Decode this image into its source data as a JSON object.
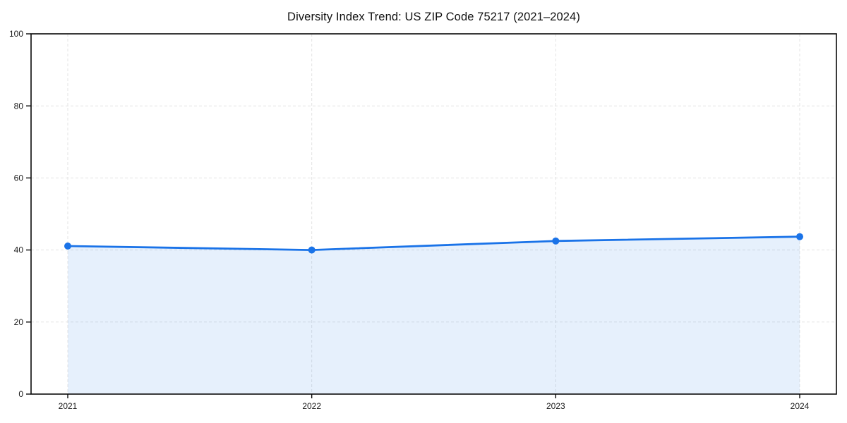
{
  "chart_data": {
    "type": "area",
    "title": "Diversity Index Trend: US ZIP Code 75217 (2021–2024)",
    "x": [
      "2021",
      "2022",
      "2023",
      "2024"
    ],
    "series": [
      {
        "name": "Diversity Index",
        "values": [
          41.1,
          40.0,
          42.5,
          43.7
        ]
      }
    ],
    "xlabel": "",
    "ylabel": "",
    "ylim": [
      0,
      100
    ],
    "yticks": [
      0,
      20,
      40,
      60,
      80,
      100
    ],
    "grid": true,
    "grid_style": "dashed",
    "legend": "none",
    "colors": {
      "line": "#1a73e8",
      "marker": "#1a73e8",
      "fill": "#1a73e8",
      "fill_opacity": 0.11,
      "gridline": "#e3e3e3",
      "spine": "#0a0a0a",
      "tick_label": "#1a1a1a",
      "background": "#ffffff"
    }
  }
}
